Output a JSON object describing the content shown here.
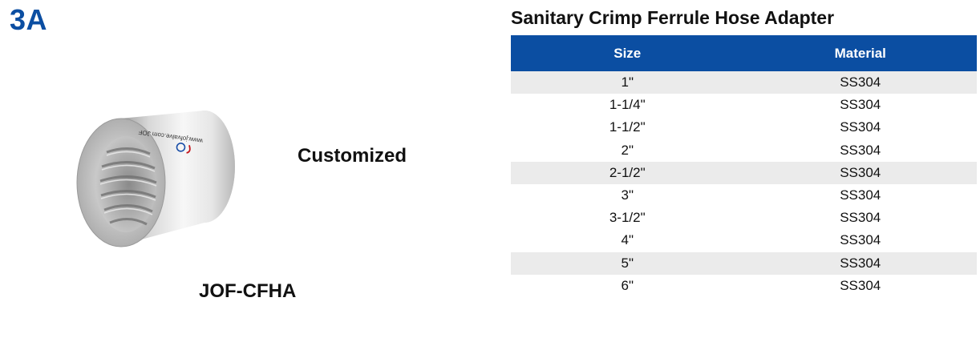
{
  "badge": "3A",
  "product": {
    "customized_label": "Customized",
    "model_code": "JOF-CFHA",
    "image_print": "www.jofvalve.com JOF"
  },
  "table": {
    "title": "Sanitary Crimp Ferrule Hose Adapter",
    "headers": {
      "size": "Size",
      "material": "Material"
    },
    "rows": [
      {
        "size": "1\"",
        "material": "SS304",
        "shaded": true
      },
      {
        "size": "1-1/4\"",
        "material": "SS304",
        "shaded": false
      },
      {
        "size": "1-1/2\"",
        "material": "SS304",
        "shaded": false
      },
      {
        "size": "2\"",
        "material": "SS304",
        "shaded": false
      },
      {
        "size": "2-1/2\"",
        "material": "SS304",
        "shaded": true
      },
      {
        "size": "3\"",
        "material": "SS304",
        "shaded": false
      },
      {
        "size": "3-1/2\"",
        "material": "SS304",
        "shaded": false
      },
      {
        "size": "4\"",
        "material": "SS304",
        "shaded": false
      },
      {
        "size": "5\"",
        "material": "SS304",
        "shaded": true
      },
      {
        "size": "6\"",
        "material": "SS304",
        "shaded": false
      }
    ]
  },
  "colors": {
    "accent_blue": "#0b4ea2",
    "row_shade": "#ebebeb",
    "text": "#111111"
  }
}
